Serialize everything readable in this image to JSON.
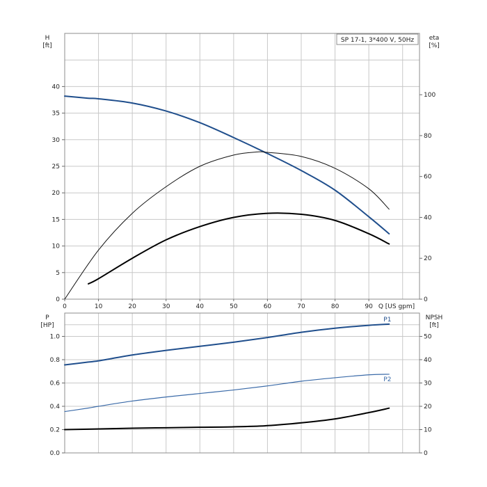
{
  "chart_data": [
    {
      "type": "line",
      "title": "SP 17-1, 3*400 V, 50Hz",
      "xlabel": "Q [US gpm]",
      "ylabel": "H",
      "yunit": "[ft]",
      "y2label": "eta",
      "y2unit": "[%]",
      "xlim": [
        0,
        105
      ],
      "ylim": [
        0,
        50
      ],
      "y2lim": [
        0,
        130
      ],
      "xticks": [
        "0",
        "10",
        "20",
        "30",
        "40",
        "50",
        "60",
        "70",
        "80",
        "90"
      ],
      "yticks": [
        "0",
        "5",
        "10",
        "15",
        "20",
        "25",
        "30",
        "35",
        "40"
      ],
      "y2ticks": [
        "0",
        "20",
        "40",
        "60",
        "80",
        "100"
      ],
      "grid": true,
      "series": [
        {
          "axis": "left",
          "color": "#1f4e8c",
          "x": [
            0,
            7,
            10,
            20,
            30,
            40,
            50,
            60,
            70,
            80,
            90,
            96
          ],
          "y": [
            38.2,
            37.8,
            37.7,
            36.9,
            35.4,
            33.2,
            30.4,
            27.4,
            24.2,
            20.5,
            15.5,
            12.3
          ]
        },
        {
          "axis": "right",
          "color": "#111111",
          "x": [
            0,
            10,
            20,
            30,
            40,
            50,
            57,
            60,
            70,
            80,
            90,
            96
          ],
          "y": [
            0,
            24,
            42,
            55,
            65,
            70.5,
            72,
            71.8,
            69.8,
            64,
            54,
            44
          ]
        },
        {
          "axis": "right",
          "color": "#000000",
          "x": [
            7,
            10,
            20,
            30,
            40,
            50,
            60,
            70,
            80,
            90,
            96
          ],
          "y": [
            7.5,
            10,
            20,
            29,
            35.5,
            40,
            42,
            41.5,
            38.5,
            32,
            27
          ]
        }
      ]
    },
    {
      "type": "line",
      "ylabel": "P",
      "yunit": "[HP]",
      "y2label": "NPSH",
      "y2unit": "[ft]",
      "xlim": [
        0,
        105
      ],
      "ylim": [
        0,
        1.2
      ],
      "y2lim": [
        0,
        60
      ],
      "yticks": [
        "0.0",
        "0.2",
        "0.4",
        "0.6",
        "0.8",
        "1.0"
      ],
      "y2ticks": [
        "0",
        "10",
        "20",
        "30",
        "40",
        "50"
      ],
      "grid": true,
      "series": [
        {
          "name": "P1",
          "axis": "left",
          "color": "#1f4e8c",
          "x": [
            0,
            7,
            10,
            20,
            30,
            40,
            50,
            60,
            70,
            80,
            90,
            96
          ],
          "y": [
            0.755,
            0.78,
            0.79,
            0.84,
            0.88,
            0.915,
            0.95,
            0.99,
            1.035,
            1.07,
            1.095,
            1.105
          ]
        },
        {
          "name": "P2",
          "axis": "left",
          "color": "#3a6aa8",
          "x": [
            0,
            7,
            10,
            20,
            30,
            40,
            50,
            60,
            70,
            80,
            90,
            96
          ],
          "y": [
            0.355,
            0.385,
            0.4,
            0.445,
            0.48,
            0.51,
            0.54,
            0.575,
            0.615,
            0.645,
            0.67,
            0.675
          ]
        },
        {
          "axis": "right",
          "color": "#000000",
          "x": [
            0,
            7,
            20,
            30,
            40,
            50,
            60,
            70,
            80,
            90,
            96
          ],
          "y": [
            10,
            10.2,
            10.6,
            10.8,
            11,
            11.2,
            11.7,
            12.9,
            14.6,
            17.3,
            19.2
          ]
        }
      ]
    }
  ]
}
